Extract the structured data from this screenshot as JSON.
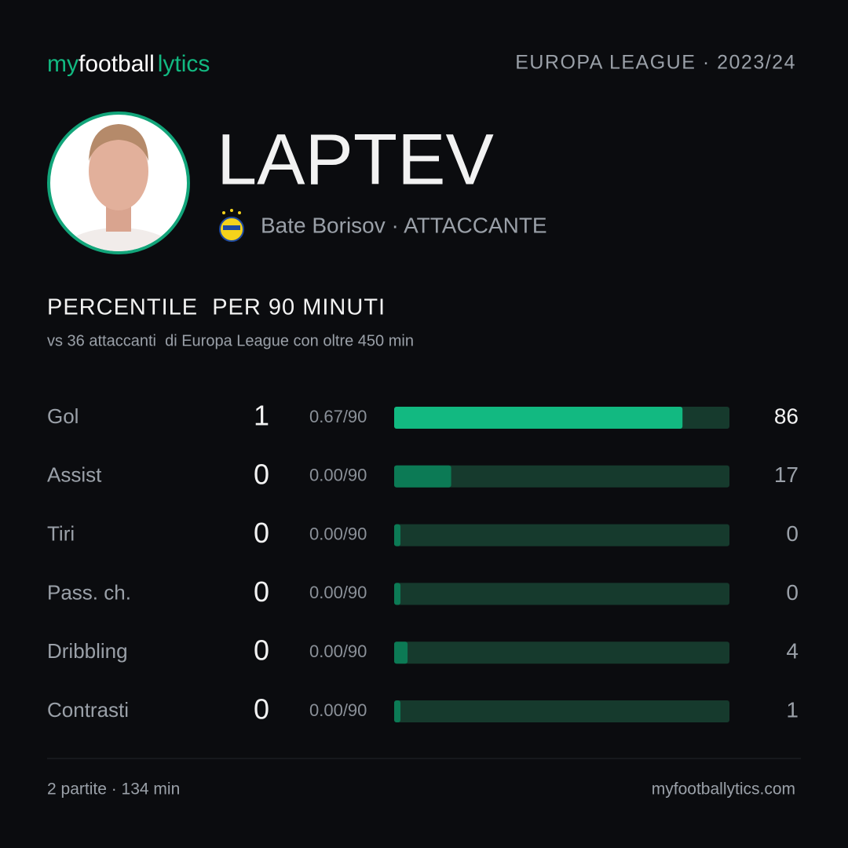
{
  "header": {
    "brand_my": "my",
    "brand_football": "football",
    "brand_lytics": "lytics",
    "competition": "EUROPA LEAGUE · 2023/24"
  },
  "player": {
    "name": "LAPTEV",
    "club": "Bate Borisov · ATTACCANTE"
  },
  "section": {
    "title": "PERCENTILE  PER 90 MINUTI",
    "subtitle": "vs 36 attaccanti  di Europa League con oltre 450 min"
  },
  "chart_data": {
    "type": "bar",
    "categories": [
      "Gol",
      "Assist",
      "Tiri",
      "Pass. ch.",
      "Dribbling",
      "Contrasti"
    ],
    "totals": [
      1,
      0,
      0,
      0,
      0,
      0
    ],
    "per90": [
      "0.67/90",
      "0.00/90",
      "0.00/90",
      "0.00/90",
      "0.00/90",
      "0.00/90"
    ],
    "values": [
      86,
      17,
      0,
      0,
      4,
      1
    ],
    "colors": [
      "#12b981",
      "#0c7a55",
      "#0c7a55",
      "#0c7a55",
      "#0c7a55",
      "#0c7a55"
    ],
    "track_color": "#163a2d",
    "xlim": [
      0,
      100
    ]
  },
  "footer": {
    "summary": "2 partite · 134 min",
    "site": "myfootballytics.com"
  }
}
